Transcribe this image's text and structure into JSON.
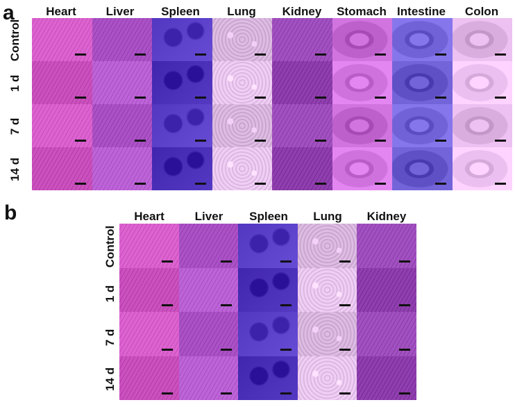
{
  "panel_a": {
    "letter": "a",
    "columns": [
      "Heart",
      "Liver",
      "Spleen",
      "Lung",
      "Kidney",
      "Stomach",
      "Intestine",
      "Colon"
    ],
    "rows": [
      "Control",
      "1 d",
      "7 d",
      "14 d"
    ]
  },
  "panel_b": {
    "letter": "b",
    "columns": [
      "Heart",
      "Liver",
      "Spleen",
      "Lung",
      "Kidney"
    ],
    "rows": [
      "Control",
      "1 d",
      "7 d",
      "14 d"
    ]
  },
  "colors": {
    "heart": "#d45bc8",
    "liver": "#b55cd0",
    "spleen": "#4a2fb8",
    "lung": "#e8c6ee",
    "kidney": "#9a4ab8",
    "stomach": "#c86ad6",
    "intestine": "#6a5ad0",
    "colon": "#e3b7e8"
  }
}
